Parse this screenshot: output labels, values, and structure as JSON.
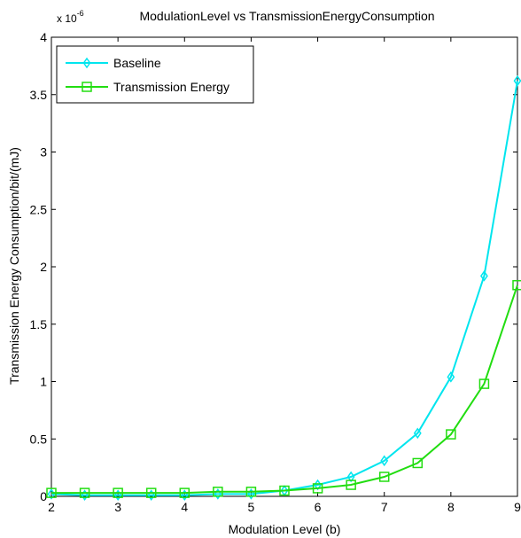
{
  "chart_data": {
    "type": "line",
    "title": "ModulationLevel vs TransmissionEnergyConsumption",
    "xlabel": "Modulation Level (b)",
    "ylabel": "Transmission Energy Consumption/bit/(mJ)",
    "y_multiplier": "x 10",
    "y_multiplier_exponent": "-6",
    "xlim": [
      2,
      9
    ],
    "ylim": [
      0,
      4
    ],
    "x_ticks": [
      "2",
      "3",
      "4",
      "5",
      "6",
      "7",
      "8",
      "9"
    ],
    "y_ticks": [
      "0",
      "0.5",
      "1",
      "1.5",
      "2",
      "2.5",
      "3",
      "3.5",
      "4"
    ],
    "grid": false,
    "legend_position": "top-left",
    "x": [
      2,
      2.5,
      3,
      3.5,
      4,
      4.5,
      5,
      5.5,
      6,
      6.5,
      7,
      7.5,
      8,
      8.5,
      9
    ],
    "series": [
      {
        "name": "Baseline",
        "color": "#00e5ee",
        "marker": "diamond",
        "values": [
          0.02,
          0.01,
          0.01,
          0.01,
          0.01,
          0.02,
          0.02,
          0.05,
          0.1,
          0.17,
          0.31,
          0.55,
          1.04,
          1.92,
          3.62
        ]
      },
      {
        "name": "Transmission Energy",
        "color": "#22dd11",
        "marker": "square",
        "values": [
          0.03,
          0.03,
          0.03,
          0.03,
          0.03,
          0.04,
          0.04,
          0.05,
          0.07,
          0.1,
          0.17,
          0.29,
          0.54,
          0.98,
          1.84
        ]
      }
    ]
  }
}
